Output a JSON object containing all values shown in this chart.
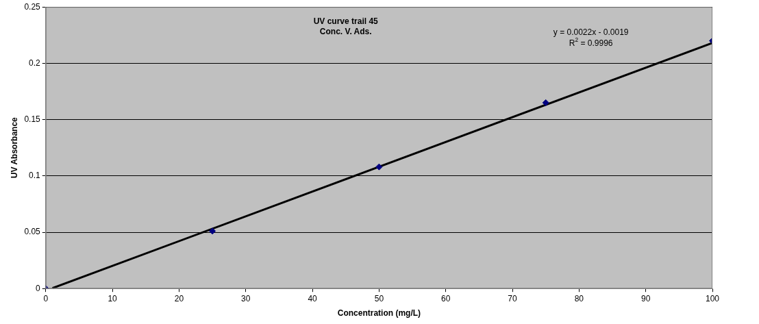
{
  "chart_data": {
    "type": "scatter",
    "title": "UV curve trail 45",
    "subtitle": "Conc. V. Ads.",
    "xlabel": "Concentration (mg/L)",
    "ylabel": "UV Absorbance",
    "series": [
      {
        "type": "scatter",
        "marker": "diamond",
        "color": "#000080",
        "x": [
          0,
          25,
          50,
          75,
          100
        ],
        "values": [
          0,
          0.051,
          0.108,
          0.165,
          0.22
        ]
      },
      {
        "type": "line",
        "marker": "none",
        "color": "#000000",
        "x": [
          1,
          100
        ],
        "values": [
          0.0003,
          0.2181
        ]
      }
    ],
    "annotations": [
      "y = 0.0022x - 0.0019",
      "R$^{2}$ = 0.9996"
    ],
    "xlim": [
      0,
      100
    ],
    "xticks": [
      0,
      10,
      20,
      30,
      40,
      50,
      60,
      70,
      80,
      90,
      100
    ],
    "ylim": [
      0,
      0.25
    ],
    "yticks": [
      0,
      0.05,
      0.1,
      0.15,
      0.2,
      0.25
    ],
    "grid": "y",
    "legend": false,
    "line_style": "solid"
  }
}
